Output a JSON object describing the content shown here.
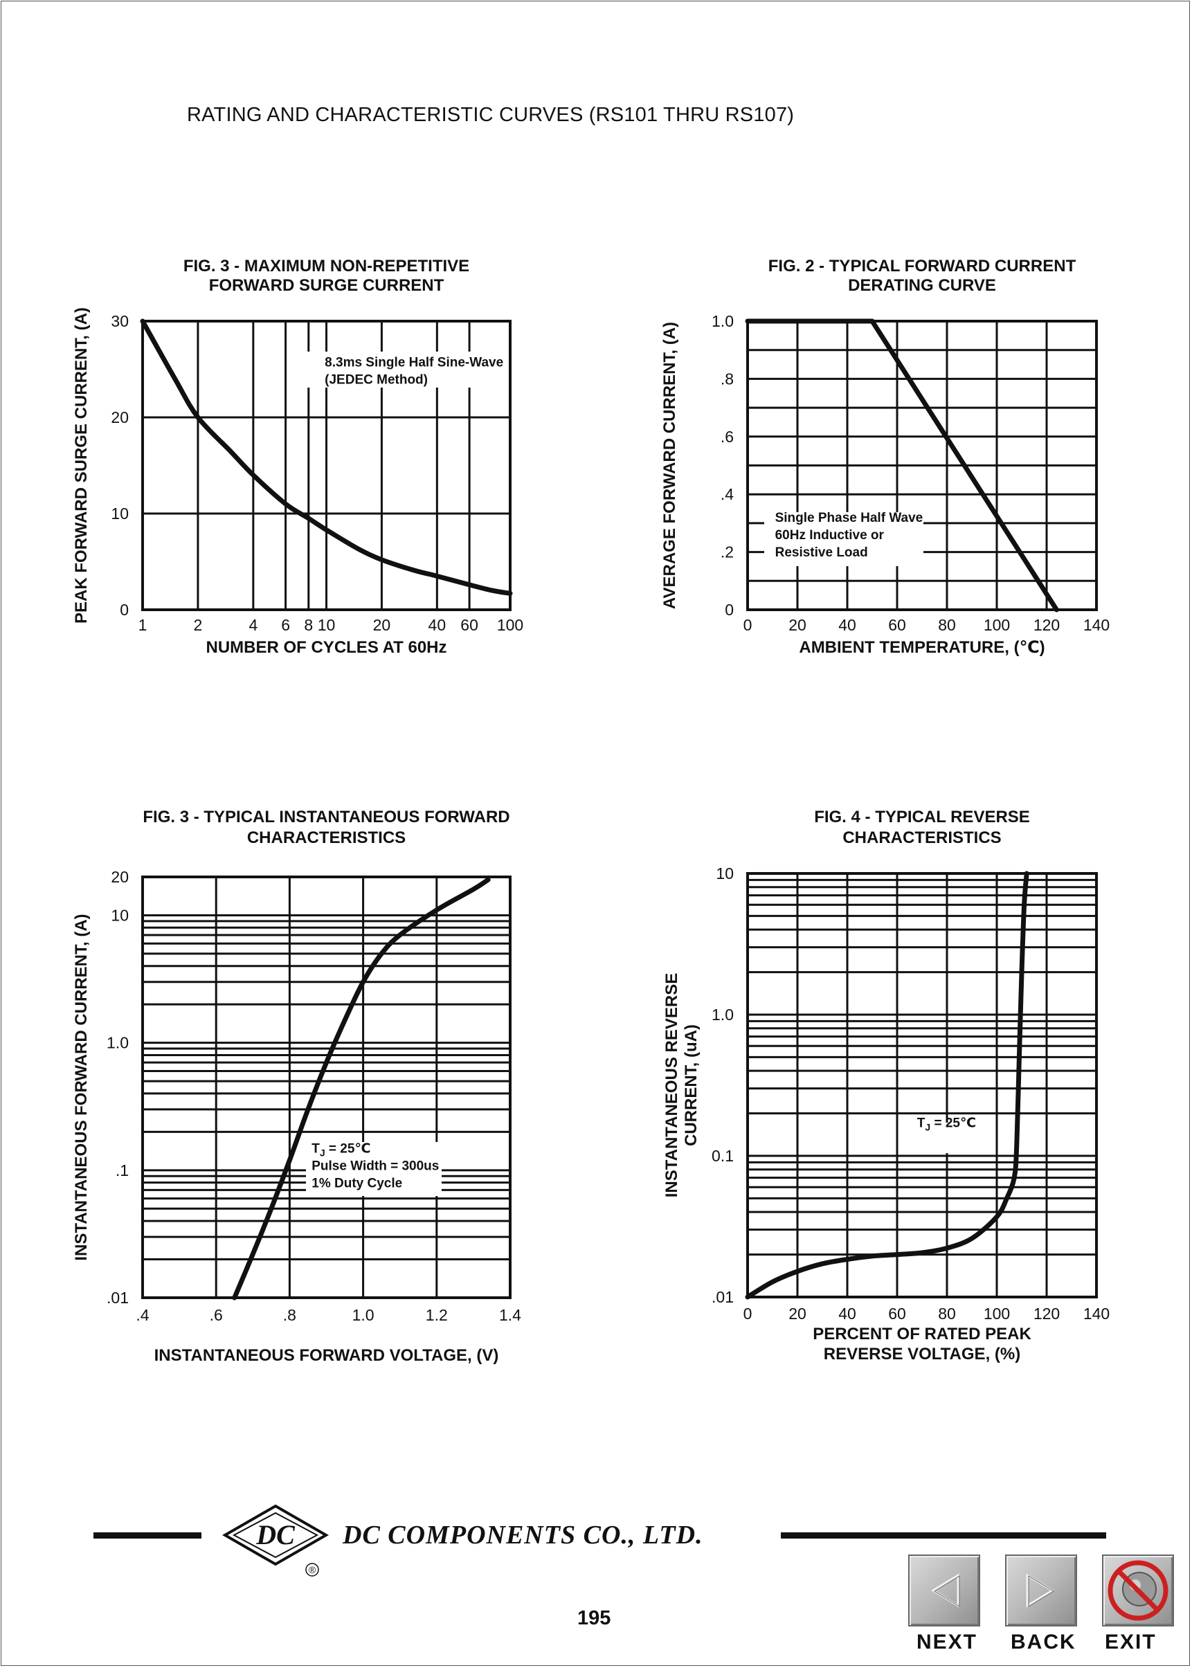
{
  "page": {
    "title": "RATING AND CHARACTERISTIC CURVES (RS101 THRU RS107)",
    "company": "DC COMPONENTS CO., LTD.",
    "logo_text": "DC",
    "registered_mark": "®",
    "page_number": "195"
  },
  "nav": {
    "next_label": "NEXT",
    "back_label": "BACK",
    "exit_label": "EXIT",
    "next_icon": "left-triangle-icon",
    "back_icon": "right-triangle-icon",
    "exit_icon": "no-entry-icon"
  },
  "chart_data": [
    {
      "id": "surge",
      "type": "line",
      "title_lines": [
        "FIG. 3 - MAXIMUM NON-REPETITIVE",
        "FORWARD SURGE CURRENT"
      ],
      "xlabel": "NUMBER OF CYCLES AT 60Hz",
      "ylabel": "PEAK FORWARD SURGE CURRENT, (A)",
      "x_scale": "log",
      "y_scale": "linear",
      "xlim": [
        1,
        100
      ],
      "ylim": [
        0,
        30
      ],
      "x_ticks": [
        1,
        2,
        4,
        6,
        8,
        10,
        20,
        40,
        60,
        100
      ],
      "x_tick_labels": [
        "1",
        "2",
        "4",
        "6",
        "8",
        "10",
        "20",
        "40",
        "60",
        "100"
      ],
      "x_grid": [
        1,
        2,
        4,
        6,
        8,
        10,
        20,
        40,
        60,
        100
      ],
      "y_ticks": [
        0,
        10,
        20,
        30
      ],
      "y_tick_labels": [
        "0",
        "10",
        "20",
        "30"
      ],
      "y_grid": [
        0,
        10,
        20,
        30
      ],
      "annotation_lines": [
        "8.3ms Single Half Sine-Wave",
        "(JEDEC Method)"
      ],
      "annotation_anchor": [
        9.8,
        25.3
      ],
      "series": [
        {
          "x": [
            1,
            1.5,
            2,
            3,
            4,
            6,
            8,
            10,
            15,
            20,
            30,
            40,
            60,
            80,
            100
          ],
          "y": [
            30,
            24,
            20,
            16.5,
            14,
            11,
            9.5,
            8.3,
            6.3,
            5.2,
            4.1,
            3.5,
            2.6,
            2.0,
            1.7
          ]
        }
      ]
    },
    {
      "id": "derating",
      "type": "line",
      "title_lines": [
        "FIG. 2 - TYPICAL FORWARD CURRENT",
        "DERATING CURVE"
      ],
      "xlabel": "AMBIENT TEMPERATURE, (℃)",
      "ylabel": "AVERAGE FORWARD CURRENT, (A)",
      "x_scale": "linear",
      "y_scale": "linear",
      "xlim": [
        0,
        140
      ],
      "ylim": [
        0,
        1.0
      ],
      "x_ticks": [
        0,
        20,
        40,
        60,
        80,
        100,
        120,
        140
      ],
      "x_tick_labels": [
        "0",
        "20",
        "40",
        "60",
        "80",
        "100",
        "120",
        "140"
      ],
      "x_grid": [
        0,
        20,
        40,
        60,
        80,
        100,
        120,
        140
      ],
      "y_ticks": [
        0,
        0.2,
        0.4,
        0.6,
        0.8,
        1.0
      ],
      "y_tick_labels": [
        "0",
        ".2",
        ".4",
        ".6",
        ".8",
        "1.0"
      ],
      "y_grid": [
        0,
        0.1,
        0.2,
        0.3,
        0.4,
        0.5,
        0.6,
        0.7,
        0.8,
        0.9,
        1.0
      ],
      "annotation_lines": [
        "Single Phase Half Wave",
        "60Hz Inductive or",
        "Resistive Load"
      ],
      "annotation_anchor": [
        11,
        0.305
      ],
      "series": [
        {
          "x": [
            0,
            50,
            124
          ],
          "y": [
            1.0,
            1.0,
            0
          ]
        }
      ]
    },
    {
      "id": "forward",
      "type": "line",
      "title_lines": [
        "FIG. 3 - TYPICAL INSTANTANEOUS FORWARD",
        "CHARACTERISTICS"
      ],
      "xlabel": "INSTANTANEOUS FORWARD VOLTAGE, (V)",
      "ylabel": "INSTANTANEOUS FORWARD CURRENT, (A)",
      "x_scale": "linear",
      "y_scale": "log",
      "xlim": [
        0.4,
        1.4
      ],
      "ylim": [
        0.01,
        20
      ],
      "x_ticks": [
        0.4,
        0.6,
        0.8,
        1.0,
        1.2,
        1.4
      ],
      "x_tick_labels": [
        ".4",
        ".6",
        ".8",
        "1.0",
        "1.2",
        "1.4"
      ],
      "x_grid": [
        0.4,
        0.6,
        0.8,
        1.0,
        1.2,
        1.4
      ],
      "y_ticks": [
        0.01,
        0.1,
        1.0,
        10,
        20
      ],
      "y_tick_labels": [
        ".01",
        ".1",
        "1.0",
        "10",
        "20"
      ],
      "y_grid": [
        0.01,
        0.02,
        0.03,
        0.04,
        0.05,
        0.06,
        0.07,
        0.08,
        0.09,
        0.1,
        0.2,
        0.3,
        0.4,
        0.5,
        0.6,
        0.7,
        0.8,
        0.9,
        1,
        2,
        3,
        4,
        5,
        6,
        7,
        8,
        9,
        10,
        20
      ],
      "annotation_lines": [
        "TJ = 25℃",
        "Pulse Width = 300us",
        "1% Duty Cycle"
      ],
      "annotation_anchor": [
        0.86,
        0.137
      ],
      "series": [
        {
          "x": [
            0.65,
            0.7,
            0.75,
            0.8,
            0.85,
            0.9,
            0.95,
            1.0,
            1.05,
            1.1,
            1.2,
            1.3,
            1.34
          ],
          "y": [
            0.01,
            0.022,
            0.05,
            0.12,
            0.3,
            0.7,
            1.5,
            3.0,
            5.0,
            7.0,
            11.0,
            16.0,
            19.0
          ]
        }
      ]
    },
    {
      "id": "reverse",
      "type": "line",
      "title_lines": [
        "FIG. 4 - TYPICAL REVERSE",
        "CHARACTERISTICS"
      ],
      "xlabel_lines": [
        "PERCENT OF RATED PEAK",
        "REVERSE VOLTAGE, (%)"
      ],
      "ylabel_lines": [
        "INSTANTANEOUS REVERSE",
        "CURRENT, (uA)"
      ],
      "x_scale": "linear",
      "y_scale": "log",
      "xlim": [
        0,
        140
      ],
      "ylim": [
        0.01,
        10
      ],
      "x_ticks": [
        0,
        20,
        40,
        60,
        80,
        100,
        120,
        140
      ],
      "x_tick_labels": [
        "0",
        "20",
        "40",
        "60",
        "80",
        "100",
        "120",
        "140"
      ],
      "x_grid": [
        0,
        20,
        40,
        60,
        80,
        100,
        120,
        140
      ],
      "y_ticks": [
        0.01,
        0.1,
        1.0,
        10
      ],
      "y_tick_labels": [
        ".01",
        "0.1",
        "1.0",
        "10"
      ],
      "y_grid": [
        0.01,
        0.02,
        0.03,
        0.04,
        0.05,
        0.06,
        0.07,
        0.08,
        0.09,
        0.1,
        0.2,
        0.3,
        0.4,
        0.5,
        0.6,
        0.7,
        0.8,
        0.9,
        1,
        2,
        3,
        4,
        5,
        6,
        7,
        8,
        9,
        10
      ],
      "annotation_lines": [
        "TJ = 25℃"
      ],
      "annotation_anchor": [
        68,
        0.16
      ],
      "series": [
        {
          "x": [
            0,
            10,
            20,
            30,
            40,
            50,
            60,
            70,
            80,
            90,
            100,
            104,
            107,
            108,
            109,
            110,
            111,
            112
          ],
          "y": [
            0.01,
            0.0128,
            0.0152,
            0.0172,
            0.0185,
            0.0195,
            0.02,
            0.0206,
            0.0222,
            0.026,
            0.037,
            0.05,
            0.07,
            0.12,
            0.5,
            2.0,
            6.0,
            10.0
          ]
        }
      ]
    }
  ]
}
